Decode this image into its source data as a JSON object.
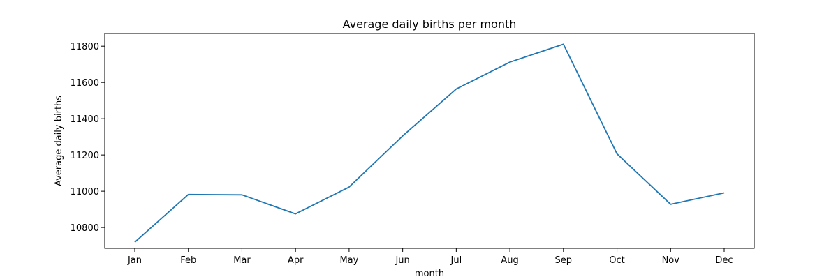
{
  "chart_data": {
    "type": "line",
    "title": "Average daily births per month",
    "xlabel": "month",
    "ylabel": "Average daily births",
    "categories": [
      "Jan",
      "Feb",
      "Mar",
      "Apr",
      "May",
      "Jun",
      "Jul",
      "Aug",
      "Sep",
      "Oct",
      "Nov",
      "Dec"
    ],
    "series": [
      {
        "color": "#1f77b4",
        "values": [
          10719,
          10982,
          10980,
          10875,
          11023,
          11305,
          11564,
          11712,
          11811,
          11206,
          10928,
          10991
        ]
      }
    ],
    "ylim": [
      10685,
      11870
    ],
    "yticks": [
      10800,
      11000,
      11200,
      11400,
      11600,
      11800
    ],
    "grid": false,
    "legend": "none"
  }
}
